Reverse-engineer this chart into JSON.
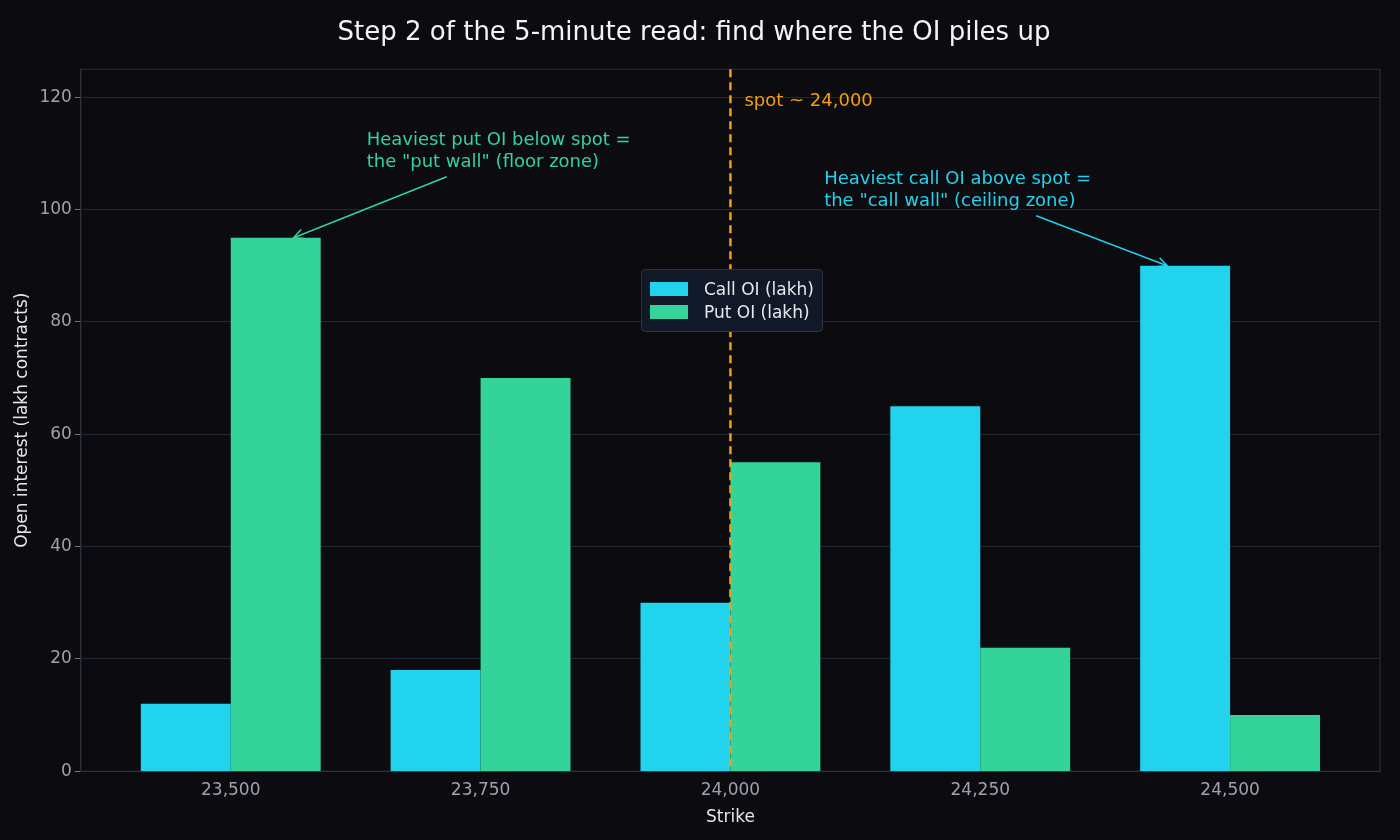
{
  "chart_data": {
    "type": "bar",
    "title": "Step 2 of the 5-minute read: find where the OI piles up",
    "xlabel": "Strike",
    "ylabel": "Open interest (lakh contracts)",
    "x": [
      23500,
      23750,
      24000,
      24250,
      24500
    ],
    "series": [
      {
        "name": "Call OI (lakh)",
        "color": "#22d3ee",
        "values": [
          12,
          18,
          30,
          65,
          90
        ]
      },
      {
        "name": "Put OI (lakh)",
        "color": "#34d399",
        "values": [
          95,
          70,
          55,
          22,
          10
        ]
      }
    ],
    "xlim": [
      23350,
      24650
    ],
    "xticks": [
      {
        "value": 23500,
        "label": "23,500"
      },
      {
        "value": 23750,
        "label": "23,750"
      },
      {
        "value": 24000,
        "label": "24,000"
      },
      {
        "value": 24250,
        "label": "24,250"
      },
      {
        "value": 24500,
        "label": "24,500"
      }
    ],
    "ylim": [
      0,
      125
    ],
    "yticks": [
      0,
      20,
      40,
      60,
      80,
      100,
      120
    ],
    "ref_lines": [
      {
        "axis": "x",
        "value": 24000,
        "label": "spot ~ 24,000",
        "color": "#f59e0b",
        "line_style": "dashed"
      }
    ],
    "annotations": [
      {
        "text": "Heaviest put OI below spot =\nthe \"put wall\" (floor zone)",
        "x": 23563,
        "y": 95
      },
      {
        "text": "Heaviest call OI above spot =\nthe \"call wall\" (ceiling zone)",
        "x": 24437,
        "y": 90
      }
    ],
    "grid": "y",
    "legend": "top"
  }
}
